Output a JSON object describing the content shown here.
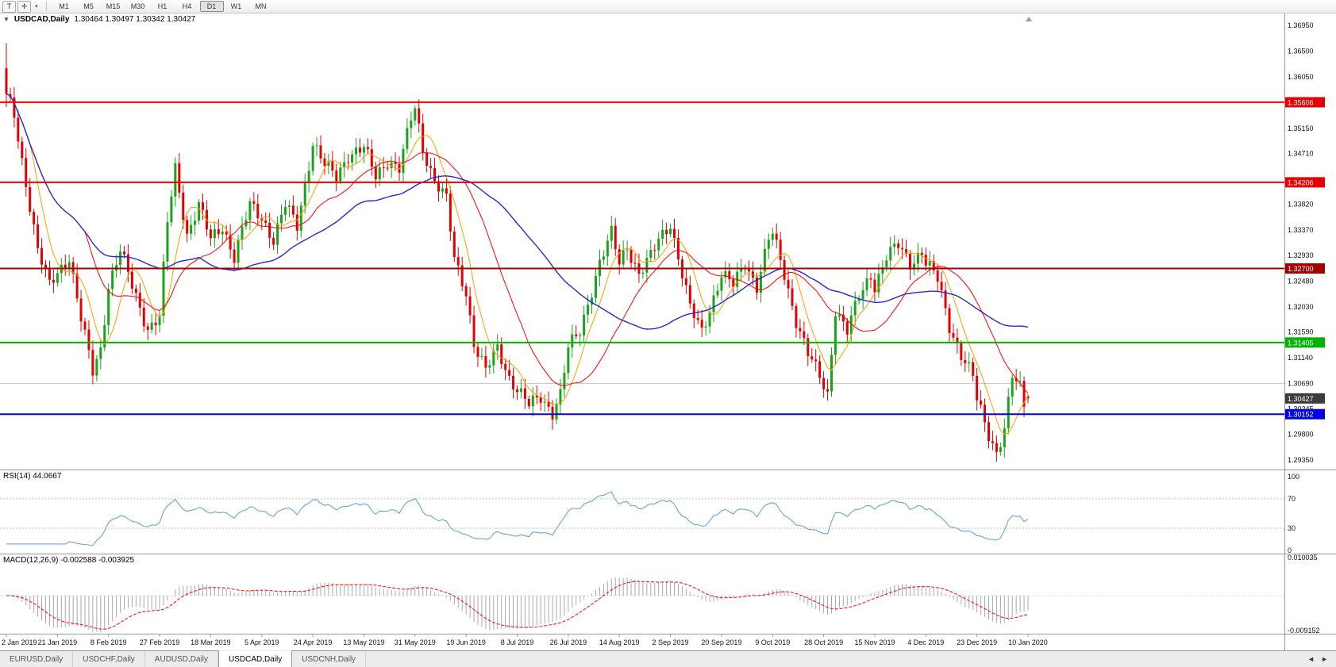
{
  "toolbar": {
    "tool_buttons": [
      {
        "name": "text-tool",
        "glyph": "T"
      },
      {
        "name": "crosshair-tool",
        "glyph": "✛"
      }
    ],
    "dropdown_caret": "▾",
    "timeframes": [
      "M1",
      "M5",
      "M15",
      "M30",
      "H1",
      "H4",
      "D1",
      "W1",
      "MN"
    ],
    "active_timeframe": "D1"
  },
  "chart": {
    "oct_arrow": "▼",
    "title": "USDCAD,Daily",
    "ohlc": "1.30464 1.30497 1.30342 1.30427"
  },
  "rsi": {
    "label": "RSI(14) 44.0667",
    "axis_labels": [
      "100",
      "70",
      "30",
      "0"
    ],
    "levels": [
      70,
      30
    ]
  },
  "macd": {
    "label": "MACD(12,26,9) -0.002588 -0.003925",
    "axis_top": "0.010035",
    "axis_bottom": "-0.009152"
  },
  "tabs": {
    "items": [
      "EURUSD,Daily",
      "USDCHF,Daily",
      "AUDUSD,Daily",
      "USDCAD,Daily",
      "USDCNH,Daily"
    ],
    "active_index": 3,
    "scroll_left": "◄",
    "scroll_right": "►"
  },
  "chart_data": {
    "type": "candlestick",
    "symbol": "USDCAD",
    "timeframe": "Daily",
    "last_ohlc": {
      "open": 1.30464,
      "high": 1.30497,
      "low": 1.30342,
      "close": 1.30427
    },
    "y_ticks": [
      "1.36950",
      "1.36500",
      "1.36050",
      "1.35150",
      "1.34710",
      "1.33820",
      "1.33370",
      "1.32930",
      "1.32480",
      "1.32030",
      "1.31590",
      "1.31140",
      "1.30690",
      "1.30245",
      "1.29800",
      "1.29350"
    ],
    "x_labels": [
      "2 Jan 2019",
      "21 Jan 2019",
      "8 Feb 2019",
      "27 Feb 2019",
      "18 Mar 2019",
      "5 Apr 2019",
      "24 Apr 2019",
      "13 May 2019",
      "31 May 2019",
      "19 Jun 2019",
      "8 Jul 2019",
      "26 Jul 2019",
      "14 Aug 2019",
      "2 Sep 2019",
      "20 Sep 2019",
      "9 Oct 2019",
      "28 Oct 2019",
      "15 Nov 2019",
      "4 Dec 2019",
      "23 Dec 2019",
      "10 Jan 2020"
    ],
    "horizontal_lines": [
      {
        "value": 1.35606,
        "label": "1.35606",
        "color": "#e80000"
      },
      {
        "value": 1.34206,
        "label": "1.34206",
        "color": "#e80000"
      },
      {
        "value": 1.327,
        "label": "1.32700",
        "color": "#a00000"
      },
      {
        "value": 1.31405,
        "label": "1.31405",
        "color": "#00b300"
      },
      {
        "value": 1.30152,
        "label": "1.30152",
        "color": "#0000e0"
      }
    ],
    "gray_line": 1.3069,
    "current_price": {
      "value": 1.30427,
      "label": "1.30427",
      "box_color": "#3c3c3c"
    },
    "price_scale": {
      "top": 1.37158,
      "bottom": 1.29184
    },
    "bars_count": 261,
    "first_candle": [
      1.362,
      1.3664,
      1.3552,
      1.3575
    ],
    "last_candle": [
      1.30464,
      1.30497,
      1.30342,
      1.30427
    ],
    "close_waypoints": [
      [
        0,
        1.3575
      ],
      [
        2,
        1.354
      ],
      [
        5,
        1.342
      ],
      [
        8,
        1.33
      ],
      [
        11,
        1.324
      ],
      [
        13,
        1.3265
      ],
      [
        16,
        1.329
      ],
      [
        19,
        1.318
      ],
      [
        22,
        1.309
      ],
      [
        24,
        1.313
      ],
      [
        26,
        1.324
      ],
      [
        29,
        1.33
      ],
      [
        32,
        1.324
      ],
      [
        36,
        1.3165
      ],
      [
        39,
        1.3185
      ],
      [
        41,
        1.335
      ],
      [
        43,
        1.3445
      ],
      [
        46,
        1.333
      ],
      [
        49,
        1.338
      ],
      [
        52,
        1.332
      ],
      [
        55,
        1.3345
      ],
      [
        58,
        1.329
      ],
      [
        62,
        1.338
      ],
      [
        65,
        1.336
      ],
      [
        68,
        1.332
      ],
      [
        71,
        1.338
      ],
      [
        74,
        1.3345
      ],
      [
        78,
        1.349
      ],
      [
        81,
        1.345
      ],
      [
        84,
        1.343
      ],
      [
        87,
        1.347
      ],
      [
        91,
        1.348
      ],
      [
        94,
        1.343
      ],
      [
        97,
        1.346
      ],
      [
        100,
        1.3445
      ],
      [
        103,
        1.353
      ],
      [
        104,
        1.355
      ],
      [
        106,
        1.348
      ],
      [
        109,
        1.3425
      ],
      [
        112,
        1.339
      ],
      [
        114,
        1.3285
      ],
      [
        117,
        1.323
      ],
      [
        119,
        1.314
      ],
      [
        122,
        1.309
      ],
      [
        125,
        1.313
      ],
      [
        128,
        1.308
      ],
      [
        130,
        1.306
      ],
      [
        133,
        1.303
      ],
      [
        136,
        1.3045
      ],
      [
        139,
        1.302
      ],
      [
        141,
        1.305
      ],
      [
        143,
        1.313
      ],
      [
        146,
        1.316
      ],
      [
        148,
        1.321
      ],
      [
        151,
        1.328
      ],
      [
        154,
        1.333
      ],
      [
        156,
        1.328
      ],
      [
        158,
        1.331
      ],
      [
        161,
        1.326
      ],
      [
        164,
        1.329
      ],
      [
        166,
        1.332
      ],
      [
        169,
        1.335
      ],
      [
        171,
        1.329
      ],
      [
        174,
        1.32
      ],
      [
        177,
        1.316
      ],
      [
        180,
        1.322
      ],
      [
        182,
        1.326
      ],
      [
        185,
        1.324
      ],
      [
        188,
        1.328
      ],
      [
        191,
        1.324
      ],
      [
        194,
        1.332
      ],
      [
        195,
        1.333
      ],
      [
        198,
        1.326
      ],
      [
        201,
        1.318
      ],
      [
        204,
        1.312
      ],
      [
        207,
        1.308
      ],
      [
        209,
        1.305
      ],
      [
        211,
        1.32
      ],
      [
        214,
        1.316
      ],
      [
        217,
        1.322
      ],
      [
        220,
        1.326
      ],
      [
        221,
        1.324
      ],
      [
        224,
        1.329
      ],
      [
        227,
        1.331
      ],
      [
        230,
        1.328
      ],
      [
        233,
        1.33
      ],
      [
        234,
        1.328
      ],
      [
        237,
        1.325
      ],
      [
        240,
        1.317
      ],
      [
        243,
        1.312
      ],
      [
        246,
        1.308
      ],
      [
        247,
        1.304
      ],
      [
        250,
        1.298
      ],
      [
        252,
        1.295
      ],
      [
        254,
        1.299
      ],
      [
        256,
        1.308
      ],
      [
        258,
        1.306
      ],
      [
        259,
        1.303
      ],
      [
        260,
        1.30427
      ]
    ],
    "colors": {
      "up": "#18a318",
      "down": "#e30000",
      "ma_fast": "#ff9d00",
      "ma_mid": "#ff0000",
      "ma_slow": "#2929c8",
      "rsi": "#5b9bd5",
      "macd_hist": "#a8a8a8",
      "macd_signal": "#ff0000"
    },
    "indicators": {
      "rsi_period": 14,
      "rsi_value": 44.0667,
      "macd_fast": 12,
      "macd_slow": 26,
      "macd_signal_period": 9,
      "macd_value": -0.002588,
      "macd_signal_value": -0.003925
    },
    "ma_periods": {
      "fast": 7,
      "mid": 21,
      "slow": 50
    }
  }
}
